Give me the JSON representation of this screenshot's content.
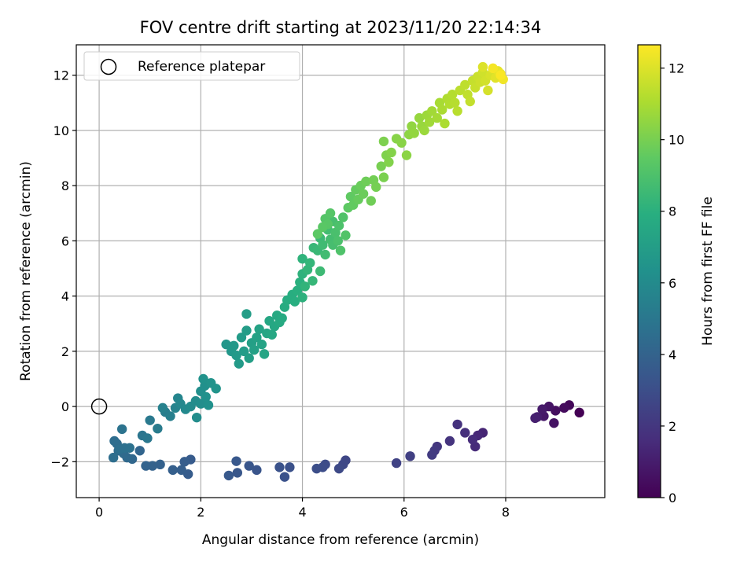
{
  "chart_data": {
    "type": "scatter",
    "title": "FOV centre drift starting at 2023/11/20 22:14:34",
    "xlabel": "Angular distance from reference (arcmin)",
    "ylabel": "Rotation from reference (arcmin)",
    "xlim": [
      -0.45,
      9.95
    ],
    "ylim": [
      -3.3,
      13.1
    ],
    "xticks": [
      0,
      2,
      4,
      6,
      8
    ],
    "yticks": [
      -2,
      0,
      2,
      4,
      6,
      8,
      10,
      12
    ],
    "grid": true,
    "colorbar": {
      "label": "Hours from first FF file",
      "range": [
        0,
        12.65
      ],
      "ticks": [
        0,
        2,
        4,
        6,
        8,
        10,
        12
      ],
      "colormap": "viridis"
    },
    "legend": {
      "placement": "top-left",
      "entries": [
        {
          "label": "Reference platepar",
          "marker": "hollow-circle"
        }
      ]
    },
    "reference_point": {
      "x": 0,
      "y": 0
    },
    "series": [
      {
        "points": [
          [
            9.45,
            -0.22,
            0.0
          ],
          [
            9.25,
            0.05,
            0.2
          ],
          [
            9.15,
            -0.05,
            0.35
          ],
          [
            8.98,
            -0.15,
            0.5
          ],
          [
            8.95,
            -0.6,
            0.6
          ],
          [
            8.85,
            0.0,
            0.7
          ],
          [
            8.75,
            -0.35,
            0.8
          ],
          [
            8.72,
            -0.1,
            0.9
          ],
          [
            8.62,
            -0.38,
            1.0
          ],
          [
            8.58,
            -0.42,
            1.1
          ],
          [
            7.55,
            -0.95,
            1.3
          ],
          [
            7.45,
            -1.05,
            1.4
          ],
          [
            7.4,
            -1.45,
            1.5
          ],
          [
            7.35,
            -1.2,
            1.6
          ],
          [
            7.2,
            -0.95,
            1.7
          ],
          [
            7.05,
            -0.65,
            1.8
          ],
          [
            6.9,
            -1.25,
            1.9
          ],
          [
            6.65,
            -1.45,
            2.0
          ],
          [
            6.6,
            -1.6,
            2.1
          ],
          [
            6.55,
            -1.75,
            2.2
          ],
          [
            6.12,
            -1.8,
            2.4
          ],
          [
            5.85,
            -2.05,
            2.5
          ],
          [
            4.85,
            -1.95,
            2.7
          ],
          [
            4.8,
            -2.1,
            2.75
          ],
          [
            4.72,
            -2.25,
            2.8
          ],
          [
            4.45,
            -2.1,
            2.9
          ],
          [
            4.4,
            -2.2,
            2.95
          ],
          [
            4.28,
            -2.25,
            3.0
          ],
          [
            3.75,
            -2.2,
            3.1
          ],
          [
            3.65,
            -2.55,
            3.15
          ],
          [
            3.55,
            -2.2,
            3.2
          ],
          [
            3.1,
            -2.3,
            3.3
          ],
          [
            2.95,
            -2.15,
            3.35
          ],
          [
            2.72,
            -2.4,
            3.4
          ],
          [
            2.7,
            -1.98,
            3.45
          ],
          [
            2.55,
            -2.5,
            3.5
          ],
          [
            1.8,
            -1.92,
            3.6
          ],
          [
            1.75,
            -2.45,
            3.65
          ],
          [
            1.68,
            -2.0,
            3.7
          ],
          [
            1.62,
            -2.3,
            3.75
          ],
          [
            1.45,
            -2.3,
            3.8
          ],
          [
            1.2,
            -2.1,
            3.9
          ],
          [
            1.05,
            -2.15,
            3.95
          ],
          [
            0.92,
            -2.15,
            4.0
          ],
          [
            0.8,
            -1.6,
            4.1
          ],
          [
            0.65,
            -1.9,
            4.2
          ],
          [
            0.55,
            -1.85,
            4.3
          ],
          [
            0.48,
            -1.7,
            4.35
          ],
          [
            0.38,
            -1.6,
            4.4
          ],
          [
            0.35,
            -1.35,
            4.45
          ],
          [
            0.3,
            -1.25,
            4.5
          ],
          [
            0.28,
            -1.85,
            4.55
          ],
          [
            0.4,
            -1.55,
            4.6
          ],
          [
            0.5,
            -1.5,
            4.65
          ],
          [
            0.6,
            -1.5,
            4.7
          ],
          [
            0.45,
            -0.82,
            4.8
          ],
          [
            0.85,
            -1.05,
            4.9
          ],
          [
            0.95,
            -1.15,
            5.0
          ],
          [
            1.0,
            -0.5,
            5.1
          ],
          [
            1.15,
            -0.8,
            5.2
          ],
          [
            1.3,
            -0.2,
            5.3
          ],
          [
            1.4,
            -0.35,
            5.4
          ],
          [
            1.25,
            -0.05,
            5.5
          ],
          [
            1.5,
            -0.05,
            5.6
          ],
          [
            1.55,
            0.3,
            5.7
          ],
          [
            1.6,
            0.1,
            5.8
          ],
          [
            1.7,
            -0.1,
            5.9
          ],
          [
            1.8,
            0.0,
            6.0
          ],
          [
            1.9,
            0.2,
            6.05
          ],
          [
            1.92,
            -0.4,
            6.1
          ],
          [
            2.0,
            0.1,
            6.15
          ],
          [
            2.0,
            0.55,
            6.2
          ],
          [
            2.08,
            0.75,
            6.25
          ],
          [
            2.1,
            0.35,
            6.3
          ],
          [
            2.15,
            0.05,
            6.35
          ],
          [
            2.05,
            1.0,
            6.4
          ],
          [
            2.2,
            0.85,
            6.45
          ],
          [
            2.3,
            0.65,
            6.5
          ],
          [
            2.5,
            2.25,
            6.6
          ],
          [
            2.6,
            2.0,
            6.65
          ],
          [
            2.65,
            2.2,
            6.7
          ],
          [
            2.7,
            1.85,
            6.75
          ],
          [
            2.75,
            1.55,
            6.8
          ],
          [
            2.8,
            2.5,
            6.85
          ],
          [
            2.85,
            2.0,
            6.9
          ],
          [
            2.9,
            2.75,
            6.95
          ],
          [
            2.9,
            3.35,
            7.0
          ],
          [
            2.95,
            1.75,
            7.05
          ],
          [
            3.0,
            2.3,
            7.1
          ],
          [
            3.05,
            2.05,
            7.15
          ],
          [
            3.1,
            2.5,
            7.2
          ],
          [
            3.15,
            2.8,
            7.25
          ],
          [
            3.2,
            2.25,
            7.3
          ],
          [
            3.25,
            1.9,
            7.35
          ],
          [
            3.3,
            2.65,
            7.4
          ],
          [
            3.35,
            3.1,
            7.45
          ],
          [
            3.4,
            2.6,
            7.5
          ],
          [
            3.45,
            2.9,
            7.55
          ],
          [
            3.5,
            3.3,
            7.6
          ],
          [
            3.55,
            3.05,
            7.65
          ],
          [
            3.6,
            3.2,
            7.7
          ],
          [
            3.65,
            3.6,
            7.75
          ],
          [
            3.7,
            3.85,
            7.8
          ],
          [
            3.8,
            4.05,
            7.85
          ],
          [
            3.85,
            3.8,
            7.9
          ],
          [
            3.9,
            4.2,
            7.95
          ],
          [
            3.95,
            4.5,
            8.0
          ],
          [
            4.0,
            3.95,
            8.05
          ],
          [
            4.0,
            4.8,
            8.1
          ],
          [
            4.0,
            5.35,
            8.15
          ],
          [
            4.05,
            4.35,
            8.2
          ],
          [
            4.1,
            4.95,
            8.25
          ],
          [
            4.15,
            5.2,
            8.3
          ],
          [
            4.2,
            4.55,
            8.35
          ],
          [
            4.22,
            5.75,
            8.4
          ],
          [
            4.3,
            5.65,
            8.45
          ],
          [
            4.35,
            6.1,
            8.5
          ],
          [
            4.35,
            4.9,
            8.55
          ],
          [
            4.4,
            5.85,
            8.6
          ],
          [
            4.45,
            5.5,
            8.65
          ],
          [
            4.5,
            6.4,
            8.7
          ],
          [
            4.55,
            6.05,
            8.75
          ],
          [
            4.6,
            5.85,
            8.8
          ],
          [
            4.6,
            6.7,
            8.85
          ],
          [
            4.65,
            6.3,
            8.9
          ],
          [
            4.7,
            6.0,
            8.95
          ],
          [
            4.72,
            6.55,
            9.0
          ],
          [
            4.75,
            5.65,
            9.05
          ],
          [
            4.8,
            6.85,
            9.1
          ],
          [
            4.85,
            6.2,
            9.15
          ],
          [
            4.45,
            6.8,
            9.2
          ],
          [
            4.55,
            7.0,
            9.25
          ],
          [
            4.5,
            6.6,
            9.3
          ],
          [
            4.4,
            6.5,
            9.35
          ],
          [
            4.3,
            6.25,
            9.4
          ],
          [
            4.9,
            7.2,
            9.45
          ],
          [
            4.95,
            7.6,
            9.5
          ],
          [
            5.0,
            7.3,
            9.55
          ],
          [
            5.05,
            7.85,
            9.6
          ],
          [
            5.1,
            7.5,
            9.65
          ],
          [
            5.15,
            8.0,
            9.7
          ],
          [
            5.2,
            7.7,
            9.75
          ],
          [
            5.25,
            8.15,
            9.8
          ],
          [
            5.35,
            7.45,
            9.85
          ],
          [
            5.4,
            8.2,
            9.9
          ],
          [
            5.45,
            7.95,
            9.95
          ],
          [
            5.55,
            8.7,
            10.0
          ],
          [
            5.6,
            8.3,
            10.05
          ],
          [
            5.6,
            9.6,
            10.1
          ],
          [
            5.65,
            9.1,
            10.15
          ],
          [
            5.7,
            8.85,
            10.2
          ],
          [
            5.75,
            9.2,
            10.25
          ],
          [
            5.85,
            9.7,
            10.3
          ],
          [
            5.95,
            9.55,
            10.35
          ],
          [
            6.05,
            9.1,
            10.4
          ],
          [
            6.1,
            9.85,
            10.45
          ],
          [
            6.15,
            10.15,
            10.5
          ],
          [
            6.2,
            9.9,
            10.55
          ],
          [
            6.3,
            10.45,
            10.6
          ],
          [
            6.35,
            10.15,
            10.65
          ],
          [
            6.4,
            10.0,
            10.7
          ],
          [
            6.45,
            10.55,
            10.75
          ],
          [
            6.5,
            10.3,
            10.8
          ],
          [
            6.55,
            10.7,
            10.85
          ],
          [
            6.65,
            10.45,
            10.9
          ],
          [
            6.7,
            11.0,
            10.95
          ],
          [
            6.75,
            10.75,
            11.0
          ],
          [
            6.8,
            10.25,
            11.05
          ],
          [
            6.85,
            11.15,
            11.1
          ],
          [
            6.9,
            10.95,
            11.15
          ],
          [
            6.95,
            11.3,
            11.2
          ],
          [
            7.0,
            11.0,
            11.25
          ],
          [
            7.05,
            10.7,
            11.3
          ],
          [
            7.1,
            11.45,
            11.35
          ],
          [
            7.2,
            11.65,
            11.4
          ],
          [
            7.25,
            11.3,
            11.45
          ],
          [
            7.3,
            11.05,
            11.5
          ],
          [
            7.35,
            11.8,
            11.55
          ],
          [
            7.4,
            11.55,
            11.6
          ],
          [
            7.45,
            11.95,
            11.65
          ],
          [
            7.5,
            11.75,
            11.7
          ],
          [
            7.55,
            12.1,
            11.75
          ],
          [
            7.6,
            11.8,
            11.8
          ],
          [
            7.65,
            11.45,
            11.85
          ],
          [
            7.7,
            12.0,
            11.9
          ],
          [
            7.75,
            12.2,
            11.95
          ],
          [
            7.55,
            12.3,
            12.0
          ],
          [
            7.8,
            11.9,
            12.1
          ],
          [
            7.85,
            12.15,
            12.2
          ],
          [
            7.9,
            12.05,
            12.3
          ],
          [
            7.95,
            11.85,
            12.4
          ],
          [
            7.75,
            12.25,
            12.5
          ],
          [
            7.9,
            12.0,
            12.6
          ]
        ]
      }
    ]
  }
}
